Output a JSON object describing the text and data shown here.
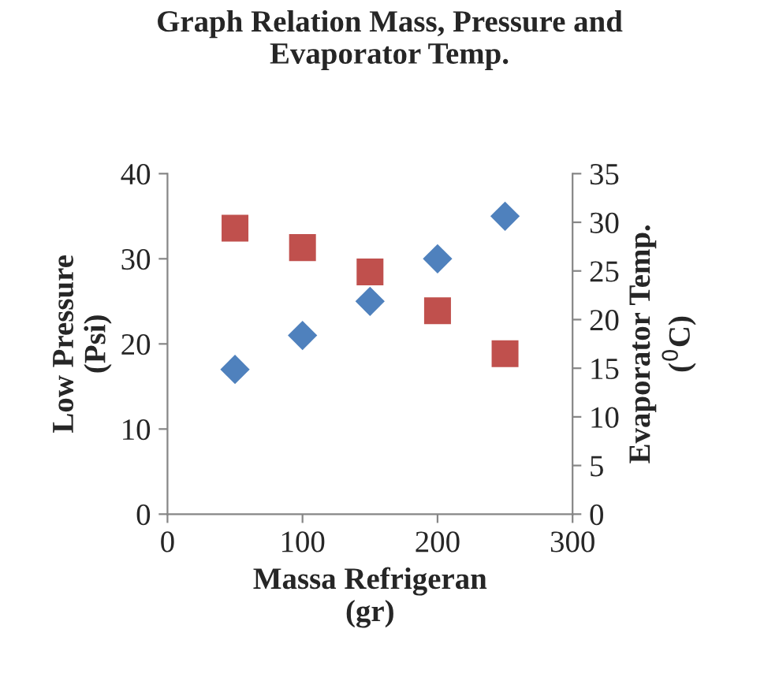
{
  "chart_data": {
    "type": "scatter",
    "title": "Graph Relation Mass, Pressure and\nEvaporator Temp.",
    "xlabel": "Massa Refrigeran\n(gr)",
    "ylabel": "Low Pressure\n(Psi)",
    "y2label": "Evaporator Temp.\n($^{0}$C)",
    "x": [
      50,
      100,
      150,
      200,
      250
    ],
    "series": [
      {
        "color": "#4f81bd",
        "marker": "diamond",
        "values": [
          17,
          21,
          25,
          30,
          35
        ]
      },
      {
        "color": "#c0504d",
        "marker": "square",
        "axis": "y2",
        "values": [
          29.4,
          27.4,
          24.9,
          20.9,
          16.5
        ]
      }
    ],
    "xlim": [
      0,
      300
    ],
    "xticks": [
      0,
      100,
      200,
      300
    ],
    "ylim": [
      0,
      40
    ],
    "yticks": [
      0,
      10,
      20,
      30,
      40
    ],
    "y2lim": [
      0,
      35
    ],
    "y2ticks": [
      0,
      5,
      10,
      15,
      20,
      25,
      30,
      35
    ],
    "grid": false,
    "legend": false
  }
}
